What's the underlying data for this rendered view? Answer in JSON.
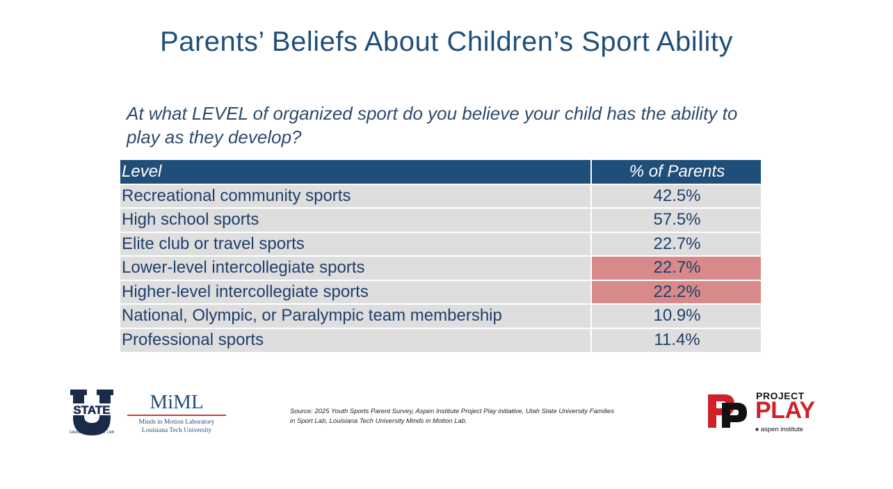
{
  "title": "Parents’ Beliefs About Children’s Sport Ability",
  "question": "At what LEVEL of organized sport do you believe your child has the ability to play as they develop?",
  "table": {
    "headers": [
      "Level",
      "% of Parents"
    ],
    "rows": [
      {
        "level": "Recreational community sports",
        "percent": "42.5%",
        "highlighted": false
      },
      {
        "level": "High school sports",
        "percent": "57.5%",
        "highlighted": false
      },
      {
        "level": "Elite club or travel sports",
        "percent": "22.7%",
        "highlighted": false
      },
      {
        "level": "Lower-level intercollegiate sports",
        "percent": "22.7%",
        "highlighted": true
      },
      {
        "level": "Higher-level intercollegiate sports",
        "percent": "22.2%",
        "highlighted": true
      },
      {
        "level": "National, Olympic, or Paralympic team membership",
        "percent": "10.9%",
        "highlighted": false
      },
      {
        "level": "Professional sports",
        "percent": "11.4%",
        "highlighted": false
      }
    ]
  },
  "logos": {
    "ustate": {
      "letter": "U",
      "word": "STATE",
      "caption": "FAMILIES IN SPORT LAB"
    },
    "miml": {
      "name": "MiML",
      "line1": "Minds in Motion Laboratory",
      "line2": "Louisiana Tech University"
    },
    "project_play": {
      "project": "PROJECT",
      "play": "PLAY",
      "aspen": "aspen institute"
    }
  },
  "source": "Source: 2025 Youth Sports Parent Survey, Aspen Institute Project Play initiative, Utah State University Families in Sport Lab, Louisiana Tech University Minds in Motion Lab.",
  "colors": {
    "header_bg": "#1f4e79",
    "row_bg": "#dedede",
    "highlight": "#d88a8a",
    "title": "#1f4e79",
    "accent_red": "#d02027"
  }
}
